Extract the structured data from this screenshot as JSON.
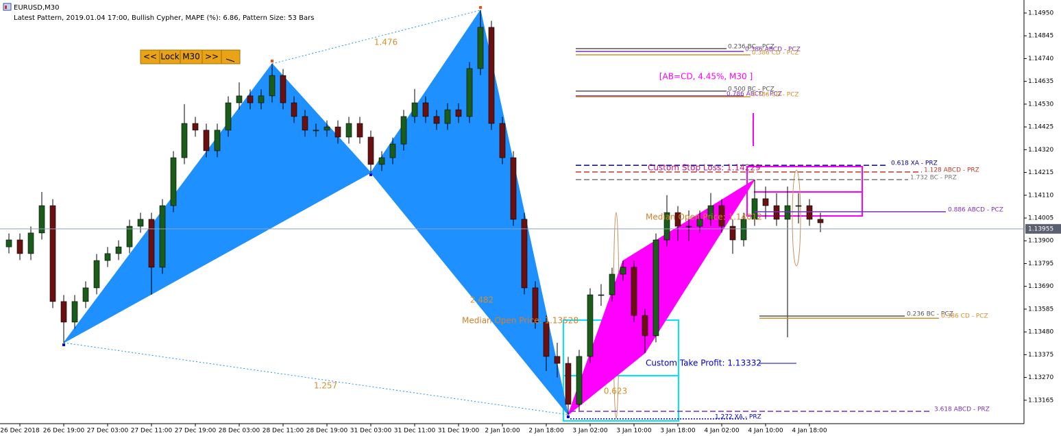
{
  "header": {
    "symbol": "EURUSD,M30",
    "info": "Latest Pattern, 2019.01.04 17:00, Bullish Cypher, MAPE (%): 6.86, Pattern Size: 53 Bars"
  },
  "toolbar": {
    "buttons": [
      "<<",
      "Lock",
      "M30",
      ">>"
    ]
  },
  "chart_data": {
    "type": "candlestick",
    "x": [
      null,
      "26 Dec 2018",
      null,
      null,
      null,
      "26 Dec 19:00",
      null,
      null,
      null,
      "27 Dec 03:00",
      null,
      null,
      null,
      "27 Dec 11:00",
      null,
      null,
      null,
      "27 Dec 19:00",
      null,
      null,
      null,
      "28 Dec 03:00",
      null,
      null,
      null,
      "28 Dec 11:00",
      null,
      null,
      null,
      "28 Dec 19:00",
      null,
      null,
      null,
      "31 Dec 03:00",
      null,
      null,
      null,
      "31 Dec 11:00",
      null,
      null,
      null,
      "31 Dec 19:00",
      null,
      null,
      null,
      "2 Jan 10:00",
      null,
      null,
      null,
      "2 Jan 18:00",
      null,
      null,
      null,
      "3 Jan 02:00",
      null,
      null,
      null,
      "3 Jan 10:00",
      null,
      null,
      null,
      "3 Jan 18:00",
      null,
      null,
      null,
      "4 Jan 02:00",
      null,
      null,
      null,
      "4 Jan 10:00",
      null,
      null,
      null,
      "4 Jan 18:00",
      null
    ],
    "open": [
      1.13872,
      1.13904,
      1.13841,
      1.13936,
      1.14062,
      1.1362,
      1.13525,
      1.1362,
      1.13683,
      1.13809,
      1.13841,
      1.13872,
      1.13967,
      1.13999,
      1.13778,
      1.14062,
      1.14283,
      1.14441,
      1.1441,
      1.14315,
      1.1441,
      1.14536,
      1.14568,
      1.14536,
      1.14568,
      1.14662,
      1.14536,
      1.14473,
      1.1441,
      1.1441,
      1.14425,
      1.14378,
      1.14441,
      1.14378,
      1.14252,
      1.14283,
      1.14346,
      1.14473,
      1.14536,
      1.14473,
      1.14441,
      1.14504,
      1.14473,
      1.14694,
      1.14884,
      1.14441,
      1.14283,
      1.13999,
      1.13683,
      1.13525,
      1.13367,
      1.13335,
      1.13146,
      1.13367,
      1.13651,
      1.13651,
      1.13746,
      1.13778,
      1.13556,
      1.13462,
      1.13904,
      1.1403,
      1.13967,
      1.13967,
      1.13999,
      1.14062,
      1.13967,
      1.13904,
      1.13999,
      1.14094,
      1.14062,
      1.13999,
      1.14062,
      1.14062,
      1.13999
    ],
    "high": [
      1.13934,
      1.13934,
      1.13966,
      1.14125,
      1.14092,
      1.1365,
      1.1365,
      1.13713,
      1.13839,
      1.13871,
      1.13902,
      1.13997,
      1.14029,
      1.14029,
      1.14092,
      1.14313,
      1.1453,
      1.14471,
      1.1444,
      1.1444,
      1.14566,
      1.1463,
      1.14598,
      1.14598,
      1.14716,
      1.14692,
      1.14566,
      1.14503,
      1.1444,
      1.14455,
      1.14455,
      1.14471,
      1.14471,
      1.14408,
      1.14313,
      1.14376,
      1.14503,
      1.146,
      1.14566,
      1.14503,
      1.14534,
      1.14534,
      1.14724,
      1.14963,
      1.14914,
      1.14471,
      1.14313,
      1.14029,
      1.13713,
      1.13555,
      1.1343,
      1.13365,
      1.13397,
      1.13681,
      1.137,
      1.13776,
      1.13808,
      1.13808,
      1.13586,
      1.13934,
      1.1411,
      1.1406,
      1.1404,
      1.1404,
      1.1412,
      1.14092,
      1.13997,
      1.14029,
      1.14182,
      1.1415,
      1.1412,
      1.1415,
      1.1412,
      1.14092,
      1.14029
    ],
    "low": [
      1.13842,
      1.13811,
      1.13811,
      1.13906,
      1.1359,
      1.1343,
      1.13495,
      1.1359,
      1.13653,
      1.13779,
      1.13811,
      1.13842,
      1.13937,
      1.13651,
      1.13748,
      1.14032,
      1.14253,
      1.1438,
      1.14285,
      1.14285,
      1.1438,
      1.14506,
      1.14506,
      1.14506,
      1.14538,
      1.14506,
      1.14443,
      1.1438,
      1.1438,
      1.1438,
      1.14348,
      1.14348,
      1.14348,
      1.14214,
      1.14222,
      1.14253,
      1.14316,
      1.14443,
      1.14443,
      1.14411,
      1.14411,
      1.14443,
      1.14443,
      1.14664,
      1.14411,
      1.14253,
      1.13969,
      1.13653,
      1.13495,
      1.133,
      1.1327,
      1.13098,
      1.13116,
      1.13337,
      1.136,
      1.13621,
      1.13716,
      1.13526,
      1.13383,
      1.13432,
      1.13874,
      1.139,
      1.139,
      1.13937,
      1.13969,
      1.13937,
      1.1384,
      1.13874,
      1.13969,
      1.14,
      1.13969,
      1.13455,
      1.1398,
      1.13969,
      1.1394
    ],
    "close": [
      1.13904,
      1.13841,
      1.13936,
      1.14062,
      1.1362,
      1.13525,
      1.1362,
      1.13683,
      1.13809,
      1.13841,
      1.13872,
      1.13967,
      1.13999,
      1.13778,
      1.14062,
      1.14283,
      1.14441,
      1.1441,
      1.14315,
      1.1441,
      1.14536,
      1.14568,
      1.14536,
      1.14568,
      1.14662,
      1.14536,
      1.14473,
      1.1441,
      1.1441,
      1.14425,
      1.14378,
      1.14441,
      1.14378,
      1.14252,
      1.14283,
      1.14346,
      1.14473,
      1.14536,
      1.14473,
      1.14441,
      1.14504,
      1.14473,
      1.14694,
      1.14884,
      1.14441,
      1.14283,
      1.13999,
      1.13683,
      1.13525,
      1.13367,
      1.13335,
      1.13146,
      1.13367,
      1.13651,
      1.13651,
      1.13746,
      1.13778,
      1.13556,
      1.13462,
      1.13904,
      1.1403,
      1.13967,
      1.13967,
      1.13999,
      1.14062,
      1.13967,
      1.13904,
      1.13999,
      1.14094,
      1.14062,
      1.13999,
      1.14062,
      1.14062,
      1.13999,
      1.13983
    ],
    "up_color": "#1a5c1a",
    "down_color": "#6b1010",
    "ylim": [
      1.13057,
      1.1501
    ],
    "yticks": [
      {
        "value": 1.1495,
        "label": "1.14950"
      },
      {
        "value": 1.14845,
        "label": "1.14845"
      },
      {
        "value": 1.1474,
        "label": "1.14740"
      },
      {
        "value": 1.14635,
        "label": "1.14635"
      },
      {
        "value": 1.1453,
        "label": "1.14530"
      },
      {
        "value": 1.14425,
        "label": "1.14425"
      },
      {
        "value": 1.1432,
        "label": "1.14320"
      },
      {
        "value": 1.14215,
        "label": "1.14215"
      },
      {
        "value": 1.1411,
        "label": "1.14110"
      },
      {
        "value": 1.14005,
        "label": "1.14005"
      },
      {
        "value": 1.139,
        "label": "1.13900"
      },
      {
        "value": 1.13795,
        "label": "1.13795"
      },
      {
        "value": 1.1369,
        "label": "1.13690"
      },
      {
        "value": 1.13585,
        "label": "1.13585"
      },
      {
        "value": 1.1348,
        "label": "1.13480"
      },
      {
        "value": 1.13375,
        "label": "1.13375"
      },
      {
        "value": 1.1327,
        "label": "1.13270"
      },
      {
        "value": 1.13165,
        "label": "1.13165"
      }
    ],
    "current_price": {
      "value": 1.13955,
      "label": "1.13955"
    },
    "patterns": [
      {
        "color": "#1e90ff",
        "index": [
          5,
          24,
          33,
          43,
          51
        ],
        "price": [
          1.1343,
          1.14716,
          1.14214,
          1.14963,
          1.13098
        ]
      },
      {
        "color": "#ff00ff",
        "index": [
          51,
          56,
          58,
          68
        ],
        "price": [
          1.13098,
          1.13808,
          1.13383,
          1.14182
        ]
      }
    ],
    "ratios": [
      "1.476",
      "2.482",
      "1.257",
      "0.623"
    ],
    "levels": [
      {
        "label": "0.236 BC - PCZ",
        "price": 1.14786,
        "color": "#555555",
        "style": "solid"
      },
      {
        "label": "0.386 ABCD - PCZ",
        "price": 1.14773,
        "color": "#7b2fbf",
        "style": "solid"
      },
      {
        "label": "0.386 CD - PCZ",
        "price": 1.14757,
        "color": "#d2902a",
        "style": "solid"
      },
      {
        "label": "0.500 BC - PCZ",
        "price": 1.1459,
        "color": "#555555",
        "style": "solid"
      },
      {
        "label": "0.786 ABCD - PCZ",
        "price": 1.14568,
        "color": "#7b2fbf",
        "style": "solid"
      },
      {
        "label": "0.786 CD - PCZ",
        "price": 1.14564,
        "color": "#d2902a",
        "style": "solid"
      },
      {
        "label": "0.618 XA - PRZ",
        "price": 1.14248,
        "color": "#00008b",
        "style": "dashed"
      },
      {
        "label": "1.128 ABCD - PRZ",
        "price": 1.14217,
        "color": "#c0392b",
        "style": "dashed"
      },
      {
        "label": "1.732 BC - PRZ",
        "price": 1.14182,
        "color": "#777777",
        "style": "dashed"
      },
      {
        "label": "0.886 ABCD - PCZ",
        "price": 1.14034,
        "color": "#7b2fbf",
        "style": "solid"
      },
      {
        "label": "0.236 BC - PCZ",
        "price": 1.13553,
        "color": "#555555",
        "style": "solid"
      },
      {
        "label": "0.386 CD - PCZ",
        "price": 1.13543,
        "color": "#d2902a",
        "style": "solid"
      },
      {
        "label": "3.618 ABCD - PRZ",
        "price": 1.13114,
        "color": "#7b2fbf",
        "style": "dashed"
      },
      {
        "label": "1.272 XA - PRZ",
        "price": 1.13079,
        "color": "#0000cd",
        "style": "dotted"
      }
    ],
    "annotations": [
      "[AB=CD,  4.45%, M30 ]",
      "Custom Stop Loss: 1.14229",
      "Median Open Price: 1.14012",
      "Median Open Price: 1.13528",
      "Custom Take Profit: 1.13332"
    ]
  }
}
